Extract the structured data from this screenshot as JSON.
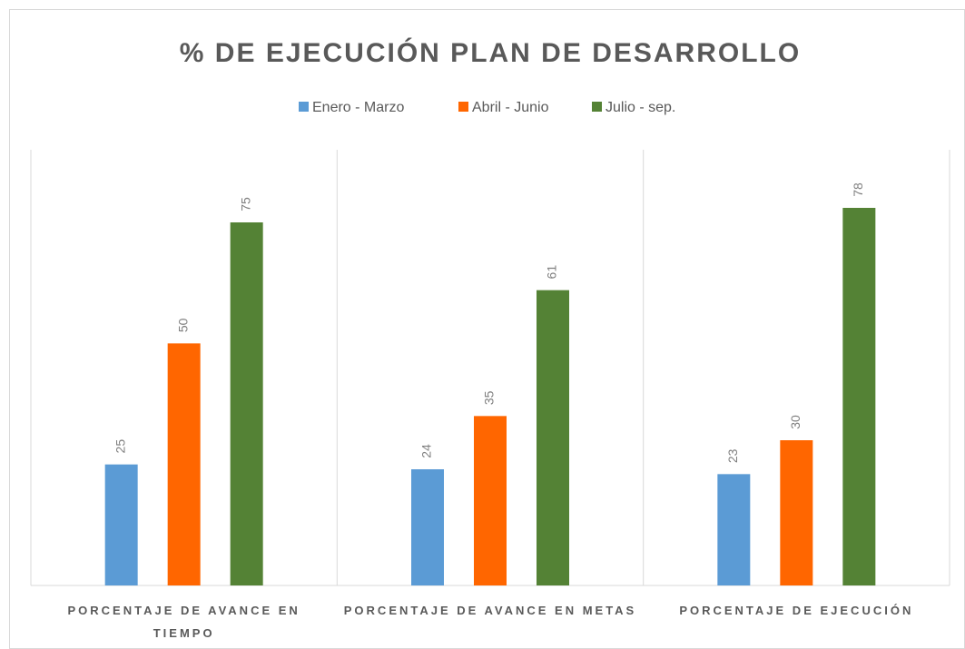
{
  "chart_data": {
    "type": "bar",
    "title": "% DE EJECUCIÓN  PLAN DE DESARROLLO",
    "categories": [
      "PORCENTAJE DE AVANCE EN TIEMPO",
      "PORCENTAJE DE AVANCE EN METAS",
      "PORCENTAJE DE EJECUCIÓN"
    ],
    "series": [
      {
        "name": "Enero - Marzo",
        "color": "#5b9bd5",
        "values": [
          25,
          24,
          23
        ]
      },
      {
        "name": "Abril - Junio",
        "color": "#ff6600",
        "values": [
          50,
          35,
          30
        ]
      },
      {
        "name": "Julio - sep.",
        "color": "#548235",
        "values": [
          75,
          61,
          78
        ]
      }
    ],
    "ylim": [
      0,
      90
    ],
    "legend": "top"
  }
}
